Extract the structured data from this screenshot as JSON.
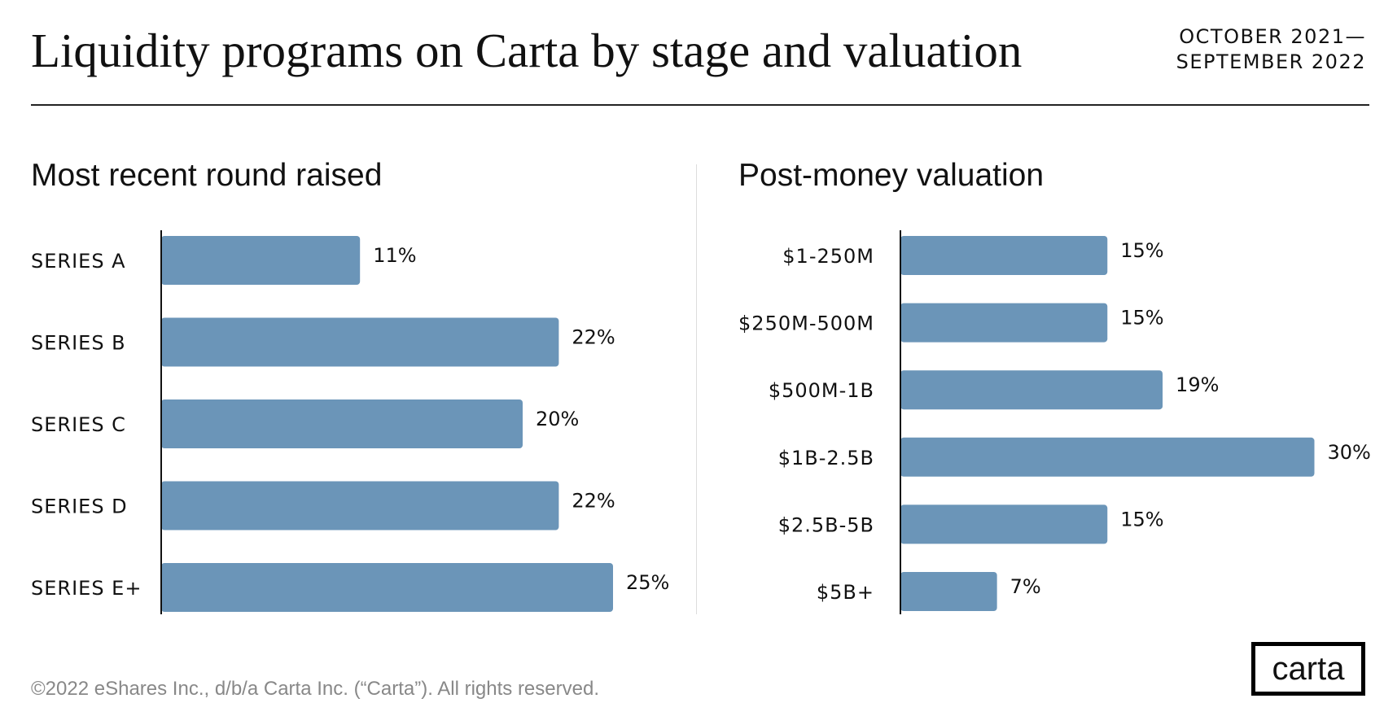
{
  "title": "Liquidity programs on Carta by stage and valuation",
  "date_range": {
    "line1": "OCTOBER 2021—",
    "line2": "SEPTEMBER 2022"
  },
  "footer": "©2022 eShares Inc., d/b/a Carta Inc. (“Carta”). All rights reserved.",
  "logo": "carta",
  "colors": {
    "bar": "#6b95b8"
  },
  "chart_data": [
    {
      "type": "bar",
      "orientation": "horizontal",
      "title": "Most recent round raised",
      "categories": [
        "SERIES A",
        "SERIES B",
        "SERIES C",
        "SERIES D",
        "SERIES E+"
      ],
      "values": [
        11,
        22,
        20,
        22,
        25
      ],
      "labels": [
        "11%",
        "22%",
        "20%",
        "22%",
        "25%"
      ],
      "unit": "%"
    },
    {
      "type": "bar",
      "orientation": "horizontal",
      "title": "Post-money valuation",
      "categories": [
        "$1-250M",
        "$250M-500M",
        "$500M-1B",
        "$1B-2.5B",
        "$2.5B-5B",
        "$5B+"
      ],
      "values": [
        15,
        15,
        19,
        30,
        15,
        7
      ],
      "labels": [
        "15%",
        "15%",
        "19%",
        "30%",
        "15%",
        "7%"
      ],
      "unit": "%"
    }
  ]
}
